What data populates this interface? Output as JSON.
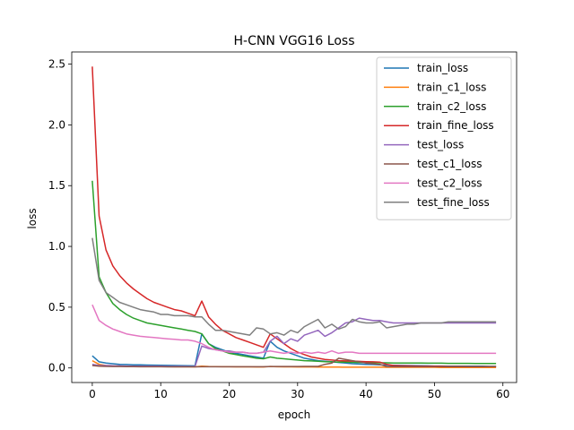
{
  "chart_data": {
    "type": "line",
    "title": "H-CNN VGG16 Loss",
    "xlabel": "epoch",
    "ylabel": "loss",
    "xlim": [
      -3,
      62
    ],
    "ylim": [
      -0.12,
      2.6
    ],
    "xticks": [
      0,
      10,
      20,
      30,
      40,
      50,
      60
    ],
    "yticks": [
      0.0,
      0.5,
      1.0,
      1.5,
      2.0,
      2.5
    ],
    "grid": false,
    "legend_position": "upper right",
    "x": [
      0,
      1,
      2,
      3,
      4,
      5,
      6,
      7,
      8,
      9,
      10,
      11,
      12,
      13,
      14,
      15,
      16,
      17,
      18,
      19,
      20,
      21,
      22,
      23,
      24,
      25,
      26,
      27,
      28,
      29,
      30,
      31,
      32,
      33,
      34,
      35,
      36,
      37,
      38,
      39,
      40,
      41,
      42,
      43,
      44,
      45,
      46,
      47,
      48,
      49,
      50,
      51,
      52,
      53,
      54,
      55,
      56,
      57,
      58,
      59
    ],
    "series": [
      {
        "name": "train_loss",
        "color": "#1f77b4",
        "values": [
          0.1,
          0.05,
          0.04,
          0.035,
          0.03,
          0.028,
          0.026,
          0.025,
          0.024,
          0.023,
          0.022,
          0.021,
          0.02,
          0.019,
          0.018,
          0.017,
          0.28,
          0.2,
          0.17,
          0.15,
          0.13,
          0.12,
          0.11,
          0.1,
          0.09,
          0.08,
          0.22,
          0.17,
          0.14,
          0.12,
          0.1,
          0.08,
          0.07,
          0.06,
          0.055,
          0.05,
          0.045,
          0.04,
          0.035,
          0.032,
          0.03,
          0.028,
          0.026,
          0.024,
          0.022,
          0.021,
          0.02,
          0.019,
          0.018,
          0.017,
          0.016,
          0.016,
          0.015,
          0.015,
          0.015,
          0.014,
          0.014,
          0.014,
          0.013,
          0.013
        ]
      },
      {
        "name": "train_c1_loss",
        "color": "#ff7f0e",
        "values": [
          0.06,
          0.03,
          0.02,
          0.018,
          0.016,
          0.015,
          0.014,
          0.013,
          0.012,
          0.012,
          0.011,
          0.011,
          0.01,
          0.01,
          0.01,
          0.009,
          0.015,
          0.012,
          0.011,
          0.01,
          0.01,
          0.009,
          0.009,
          0.009,
          0.008,
          0.008,
          0.012,
          0.01,
          0.009,
          0.009,
          0.008,
          0.008,
          0.008,
          0.007,
          0.007,
          0.007,
          0.007,
          0.006,
          0.006,
          0.006,
          0.006,
          0.006,
          0.006,
          0.005,
          0.005,
          0.005,
          0.005,
          0.005,
          0.005,
          0.005,
          0.005,
          0.004,
          0.004,
          0.004,
          0.004,
          0.004,
          0.004,
          0.004,
          0.004,
          0.004
        ]
      },
      {
        "name": "train_c2_loss",
        "color": "#2ca02c",
        "values": [
          1.54,
          0.75,
          0.62,
          0.53,
          0.48,
          0.44,
          0.41,
          0.39,
          0.37,
          0.36,
          0.35,
          0.34,
          0.33,
          0.32,
          0.31,
          0.3,
          0.28,
          0.2,
          0.16,
          0.14,
          0.12,
          0.11,
          0.1,
          0.09,
          0.08,
          0.075,
          0.09,
          0.08,
          0.075,
          0.07,
          0.065,
          0.06,
          0.058,
          0.055,
          0.052,
          0.05,
          0.048,
          0.047,
          0.046,
          0.045,
          0.044,
          0.043,
          0.042,
          0.042,
          0.041,
          0.041,
          0.04,
          0.04,
          0.04,
          0.039,
          0.039,
          0.039,
          0.038,
          0.038,
          0.038,
          0.038,
          0.037,
          0.037,
          0.037,
          0.037
        ]
      },
      {
        "name": "train_fine_loss",
        "color": "#d62728",
        "values": [
          2.48,
          1.25,
          0.97,
          0.84,
          0.76,
          0.7,
          0.65,
          0.61,
          0.57,
          0.54,
          0.52,
          0.5,
          0.48,
          0.47,
          0.45,
          0.43,
          0.55,
          0.42,
          0.36,
          0.31,
          0.28,
          0.25,
          0.23,
          0.21,
          0.19,
          0.17,
          0.28,
          0.24,
          0.2,
          0.16,
          0.13,
          0.11,
          0.09,
          0.08,
          0.07,
          0.065,
          0.06,
          0.058,
          0.056,
          0.054,
          0.052,
          0.05,
          0.048,
          0.03,
          0.02,
          0.018,
          0.017,
          0.016,
          0.015,
          0.015,
          0.014,
          0.014,
          0.013,
          0.013,
          0.013,
          0.012,
          0.012,
          0.012,
          0.012,
          0.012
        ]
      },
      {
        "name": "test_loss",
        "color": "#9467bd",
        "values": [
          0.03,
          0.02,
          0.02,
          0.018,
          0.017,
          0.016,
          0.015,
          0.015,
          0.014,
          0.014,
          0.014,
          0.013,
          0.013,
          0.013,
          0.012,
          0.012,
          0.18,
          0.16,
          0.15,
          0.14,
          0.14,
          0.13,
          0.13,
          0.12,
          0.12,
          0.13,
          0.22,
          0.26,
          0.2,
          0.24,
          0.22,
          0.27,
          0.29,
          0.31,
          0.26,
          0.29,
          0.33,
          0.37,
          0.38,
          0.41,
          0.4,
          0.39,
          0.39,
          0.38,
          0.37,
          0.37,
          0.37,
          0.37,
          0.37,
          0.37,
          0.37,
          0.37,
          0.37,
          0.37,
          0.37,
          0.37,
          0.37,
          0.37,
          0.37,
          0.37
        ]
      },
      {
        "name": "test_c1_loss",
        "color": "#8c564b",
        "values": [
          0.02,
          0.015,
          0.013,
          0.012,
          0.012,
          0.011,
          0.011,
          0.01,
          0.01,
          0.01,
          0.01,
          0.009,
          0.009,
          0.009,
          0.009,
          0.009,
          0.01,
          0.01,
          0.01,
          0.01,
          0.01,
          0.01,
          0.01,
          0.01,
          0.01,
          0.01,
          0.012,
          0.012,
          0.012,
          0.012,
          0.012,
          0.013,
          0.013,
          0.013,
          0.03,
          0.04,
          0.08,
          0.07,
          0.06,
          0.05,
          0.04,
          0.035,
          0.03,
          0.012,
          0.011,
          0.011,
          0.011,
          0.011,
          0.011,
          0.011,
          0.011,
          0.011,
          0.011,
          0.011,
          0.011,
          0.011,
          0.011,
          0.011,
          0.011,
          0.011
        ]
      },
      {
        "name": "test_c2_loss",
        "color": "#e377c2",
        "values": [
          0.52,
          0.39,
          0.35,
          0.32,
          0.3,
          0.28,
          0.27,
          0.26,
          0.255,
          0.25,
          0.245,
          0.24,
          0.235,
          0.23,
          0.23,
          0.22,
          0.2,
          0.17,
          0.15,
          0.14,
          0.13,
          0.13,
          0.13,
          0.12,
          0.12,
          0.13,
          0.14,
          0.13,
          0.12,
          0.13,
          0.12,
          0.13,
          0.12,
          0.13,
          0.12,
          0.14,
          0.12,
          0.13,
          0.13,
          0.12,
          0.12,
          0.12,
          0.12,
          0.12,
          0.12,
          0.12,
          0.12,
          0.12,
          0.12,
          0.12,
          0.12,
          0.12,
          0.12,
          0.12,
          0.12,
          0.12,
          0.12,
          0.12,
          0.12,
          0.12
        ]
      },
      {
        "name": "test_fine_loss",
        "color": "#7f7f7f",
        "values": [
          1.07,
          0.72,
          0.62,
          0.58,
          0.54,
          0.52,
          0.5,
          0.48,
          0.47,
          0.46,
          0.44,
          0.44,
          0.43,
          0.43,
          0.43,
          0.42,
          0.42,
          0.36,
          0.31,
          0.31,
          0.3,
          0.29,
          0.28,
          0.27,
          0.33,
          0.32,
          0.28,
          0.29,
          0.27,
          0.31,
          0.29,
          0.34,
          0.37,
          0.4,
          0.33,
          0.36,
          0.32,
          0.34,
          0.4,
          0.38,
          0.37,
          0.37,
          0.38,
          0.33,
          0.34,
          0.35,
          0.36,
          0.36,
          0.37,
          0.37,
          0.37,
          0.37,
          0.38,
          0.38,
          0.38,
          0.38,
          0.38,
          0.38,
          0.38,
          0.38
        ]
      }
    ]
  }
}
